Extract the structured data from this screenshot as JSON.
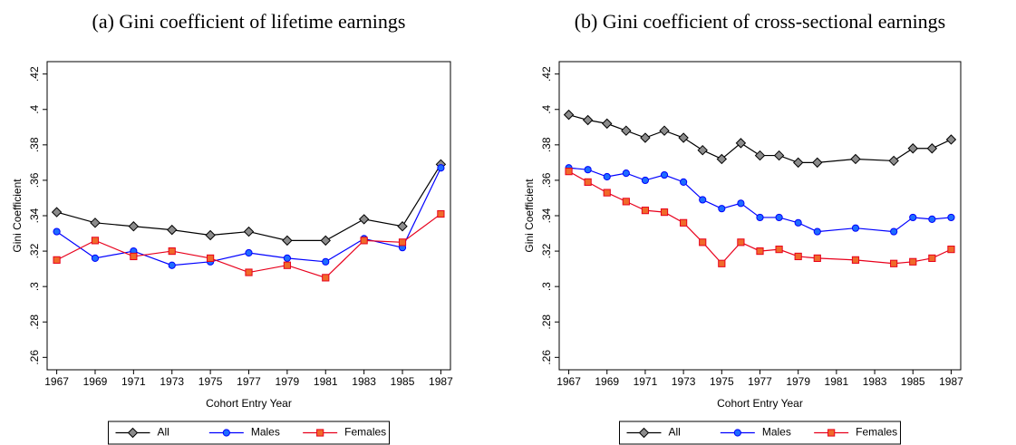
{
  "chart_data": [
    {
      "type": "line",
      "title": "(a) Gini coefficient of lifetime earnings",
      "x_label": "Cohort Entry Year",
      "y_label": "Gini Coefficient",
      "x": [
        1967,
        1969,
        1971,
        1973,
        1975,
        1977,
        1979,
        1981,
        1983,
        1985,
        1987
      ],
      "xlim": [
        1966.5,
        1987.5
      ],
      "xticks": [
        1967,
        1969,
        1971,
        1973,
        1975,
        1977,
        1979,
        1981,
        1983,
        1985,
        1987
      ],
      "ylim": [
        0.253,
        0.427
      ],
      "yticks": [
        {
          "value": 0.26,
          "label": ".26"
        },
        {
          "value": 0.28,
          "label": ".28"
        },
        {
          "value": 0.3,
          "label": ".3"
        },
        {
          "value": 0.32,
          "label": ".32"
        },
        {
          "value": 0.34,
          "label": ".34"
        },
        {
          "value": 0.36,
          "label": ".36"
        },
        {
          "value": 0.38,
          "label": ".38"
        },
        {
          "value": 0.4,
          "label": ".4"
        },
        {
          "value": 0.42,
          "label": ".42"
        }
      ],
      "legend": "bottom",
      "series": [
        {
          "name": "All",
          "color": "#000000",
          "marker": "diamond",
          "marker_fill": "#8c8c8c",
          "values": [
            0.342,
            0.336,
            0.334,
            0.332,
            0.329,
            0.331,
            0.326,
            0.326,
            0.338,
            0.334,
            0.369
          ]
        },
        {
          "name": "Males",
          "color": "#0000ff",
          "marker": "circle",
          "marker_fill": "#1e6cff",
          "values": [
            0.331,
            0.316,
            0.32,
            0.312,
            0.314,
            0.319,
            0.316,
            0.314,
            0.327,
            0.322,
            0.367
          ]
        },
        {
          "name": "Females",
          "color": "#e8001c",
          "marker": "square",
          "marker_fill": "#f06a2a",
          "values": [
            0.315,
            0.326,
            0.317,
            0.32,
            0.316,
            0.308,
            0.312,
            0.305,
            0.326,
            0.325,
            0.341
          ]
        }
      ]
    },
    {
      "type": "line",
      "title": "(b) Gini coefficient of cross-sectional earnings",
      "x_label": "Cohort Entry Year",
      "y_label": "Gini Coefficient",
      "x": [
        1967,
        1968,
        1969,
        1970,
        1971,
        1972,
        1973,
        1974,
        1975,
        1976,
        1977,
        1978,
        1979,
        1980,
        1982,
        1984,
        1985,
        1986,
        1987
      ],
      "xlim": [
        1966.5,
        1987.5
      ],
      "xticks": [
        1967,
        1969,
        1971,
        1973,
        1975,
        1977,
        1979,
        1981,
        1983,
        1985,
        1987
      ],
      "ylim": [
        0.253,
        0.427
      ],
      "yticks": [
        {
          "value": 0.26,
          "label": ".26"
        },
        {
          "value": 0.28,
          "label": ".28"
        },
        {
          "value": 0.3,
          "label": ".3"
        },
        {
          "value": 0.32,
          "label": ".32"
        },
        {
          "value": 0.34,
          "label": ".34"
        },
        {
          "value": 0.36,
          "label": ".36"
        },
        {
          "value": 0.38,
          "label": ".38"
        },
        {
          "value": 0.4,
          "label": ".4"
        },
        {
          "value": 0.42,
          "label": ".42"
        }
      ],
      "legend": "bottom",
      "series": [
        {
          "name": "All",
          "color": "#000000",
          "marker": "diamond",
          "marker_fill": "#8c8c8c",
          "values": [
            0.397,
            0.394,
            0.392,
            0.388,
            0.384,
            0.388,
            0.384,
            0.377,
            0.372,
            0.381,
            0.374,
            0.374,
            0.37,
            0.37,
            0.372,
            0.371,
            0.378,
            0.378,
            0.383
          ]
        },
        {
          "name": "Males",
          "color": "#0000ff",
          "marker": "circle",
          "marker_fill": "#1e6cff",
          "values": [
            0.367,
            0.366,
            0.362,
            0.364,
            0.36,
            0.363,
            0.359,
            0.349,
            0.344,
            0.347,
            0.339,
            0.339,
            0.336,
            0.331,
            0.333,
            0.331,
            0.339,
            0.338,
            0.339
          ]
        },
        {
          "name": "Females",
          "color": "#e8001c",
          "marker": "square",
          "marker_fill": "#f06a2a",
          "values": [
            0.365,
            0.359,
            0.353,
            0.348,
            0.343,
            0.342,
            0.336,
            0.325,
            0.313,
            0.325,
            0.32,
            0.321,
            0.317,
            0.316,
            0.315,
            0.313,
            0.314,
            0.316,
            0.321
          ]
        }
      ]
    }
  ]
}
